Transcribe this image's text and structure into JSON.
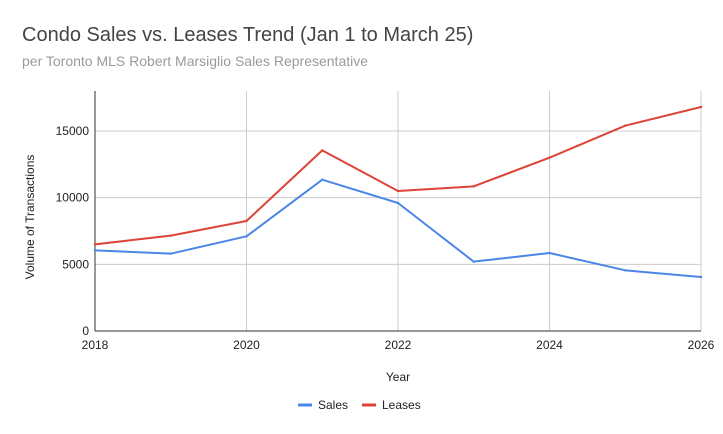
{
  "chart_data": {
    "type": "line",
    "title": "Condo Sales vs. Leases Trend (Jan 1 to March 25)",
    "subtitle": "per Toronto MLS Robert Marsiglio Sales Representative",
    "xlabel": "Year",
    "ylabel": "Volume of Transactions",
    "x": [
      2018,
      2019,
      2020,
      2021,
      2022,
      2023,
      2024,
      2025,
      2026
    ],
    "xlim": [
      2018,
      2026
    ],
    "ylim": [
      0,
      18000
    ],
    "x_ticks": [
      "2018",
      "2020",
      "2022",
      "2024",
      "2026"
    ],
    "y_ticks": [
      "0",
      "5000",
      "10000",
      "15000"
    ],
    "grid": true,
    "legend_position": "bottom",
    "series": [
      {
        "name": "Sales",
        "color": "#4a86e8",
        "values": [
          6050,
          5800,
          7100,
          11350,
          9600,
          5200,
          5850,
          4550,
          4050
        ]
      },
      {
        "name": "Leases",
        "color": "#db4437",
        "values": [
          6500,
          7150,
          8250,
          13550,
          10500,
          10850,
          13000,
          15400,
          16800
        ]
      }
    ]
  }
}
